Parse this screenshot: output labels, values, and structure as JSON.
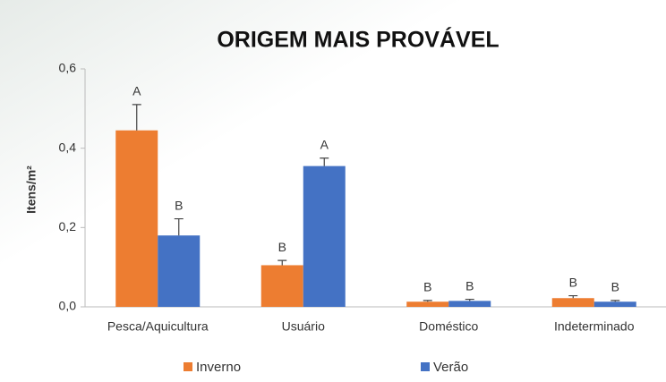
{
  "chart_data": {
    "type": "bar",
    "title": "ORIGEM MAIS PROVÁVEL",
    "y_label": "Itens/m²",
    "categories": [
      "Pesca/Aquicultura",
      "Usuário",
      "Doméstico",
      "Indeterminado"
    ],
    "series": [
      {
        "name": "Inverno",
        "color": "#ed7d31",
        "values": [
          0.445,
          0.105,
          0.013,
          0.022
        ],
        "errors": [
          0.065,
          0.012,
          0.003,
          0.006
        ],
        "letters": [
          "A",
          "B",
          "B",
          "B"
        ]
      },
      {
        "name": "Verão",
        "color": "#4472c4",
        "values": [
          0.18,
          0.355,
          0.015,
          0.013
        ],
        "errors": [
          0.042,
          0.02,
          0.004,
          0.003
        ],
        "letters": [
          "B",
          "A",
          "B",
          "B"
        ]
      }
    ],
    "ylim": [
      0,
      0.6
    ],
    "yticks": [
      {
        "value": 0,
        "label": "0,0"
      },
      {
        "value": 0.2,
        "label": "0,2"
      },
      {
        "value": 0.4,
        "label": "0,4"
      },
      {
        "value": 0.6,
        "label": "0,6"
      }
    ],
    "legend": "bottom"
  }
}
